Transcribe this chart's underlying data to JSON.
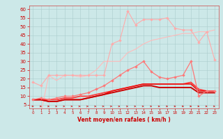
{
  "xlabel": "Vent moyen/en rafales ( km/h )",
  "bg_color": "#cce8e8",
  "grid_color": "#aacccc",
  "x_values": [
    0,
    1,
    2,
    3,
    4,
    5,
    6,
    7,
    8,
    9,
    10,
    11,
    12,
    13,
    14,
    15,
    16,
    17,
    18,
    19,
    20,
    21,
    22,
    23
  ],
  "ylim": [
    3,
    62
  ],
  "xlim": [
    -0.5,
    23.5
  ],
  "yticks": [
    5,
    10,
    15,
    20,
    25,
    30,
    35,
    40,
    45,
    50,
    55,
    60
  ],
  "xticks": [
    0,
    1,
    2,
    3,
    4,
    5,
    6,
    7,
    8,
    9,
    10,
    11,
    12,
    13,
    14,
    15,
    16,
    17,
    18,
    19,
    20,
    21,
    22,
    23
  ],
  "series": [
    {
      "color": "#ffaaaa",
      "lw": 0.8,
      "marker": "D",
      "markersize": 2.0,
      "y": [
        18,
        16,
        22,
        22,
        22,
        22,
        22,
        22,
        22,
        22,
        40,
        42,
        59,
        51,
        54,
        54,
        54,
        55,
        49,
        48,
        48,
        41,
        47,
        31
      ]
    },
    {
      "color": "#ffbbbb",
      "lw": 0.8,
      "marker": null,
      "y": [
        0,
        0,
        22,
        19,
        22,
        22,
        21,
        22,
        25,
        30,
        30,
        30,
        35,
        37,
        40,
        42,
        43,
        44,
        45,
        46,
        46,
        47,
        47,
        48
      ]
    },
    {
      "color": "#ffcccc",
      "lw": 0.8,
      "marker": null,
      "y": [
        0,
        0,
        0,
        0,
        0,
        0,
        0,
        0,
        0,
        0,
        0,
        0,
        0,
        0,
        0,
        0,
        0,
        0,
        0,
        0,
        0,
        0,
        0,
        0
      ]
    },
    {
      "color": "#ff7777",
      "lw": 0.9,
      "marker": "D",
      "markersize": 2.0,
      "y": [
        8,
        9,
        8,
        9,
        10,
        10,
        11,
        12,
        14,
        16,
        19,
        22,
        25,
        27,
        30,
        24,
        21,
        20,
        21,
        22,
        30,
        10,
        13,
        13
      ]
    },
    {
      "color": "#ff3333",
      "lw": 1.2,
      "marker": null,
      "y": [
        8,
        8,
        8,
        8,
        9,
        9,
        10,
        10,
        11,
        12,
        13,
        14,
        15,
        16,
        17,
        17,
        17,
        17,
        17,
        17,
        18,
        14,
        13,
        13
      ]
    },
    {
      "color": "#ee1111",
      "lw": 1.2,
      "marker": null,
      "y": [
        8,
        8,
        7,
        7,
        8,
        8,
        8,
        9,
        10,
        11,
        13,
        14,
        15,
        16,
        17,
        17,
        17,
        17,
        17,
        17,
        17,
        13,
        13,
        13
      ]
    },
    {
      "color": "#cc0000",
      "lw": 1.4,
      "marker": null,
      "y": [
        8,
        8,
        7,
        7,
        8,
        8,
        8,
        9,
        10,
        11,
        12,
        13,
        14,
        15,
        16,
        16,
        15,
        15,
        15,
        15,
        15,
        12,
        12,
        12
      ]
    }
  ],
  "wind_color": "#cc2222",
  "wind_y": 4.2
}
